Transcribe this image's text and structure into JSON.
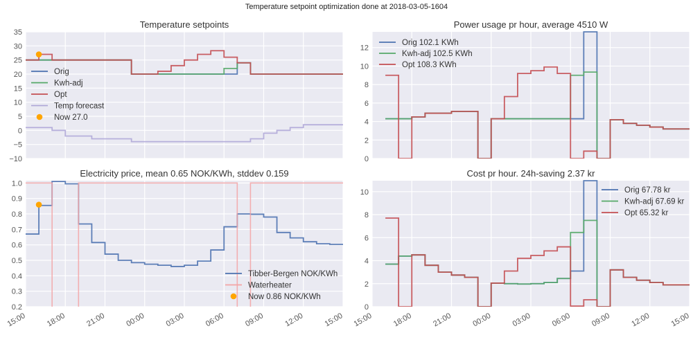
{
  "suptitle": "Temperature setpoint optimization done at 2018-03-05-1604",
  "colors": {
    "orig": "#4c72b0",
    "kwh": "#55a868",
    "opt": "#c44e52",
    "forecast": "#b0a8d8",
    "now": "#ffa500",
    "waterheater": "#f3a3a5",
    "bg": "#eaeaf2",
    "grid": "#ffffff"
  },
  "chart_data": [
    {
      "type": "line",
      "title": "Temperature setpoints",
      "x_tick_labels": [],
      "x_range_hours": [
        0,
        24
      ],
      "ylim": [
        -10,
        35
      ],
      "yticks": [
        -10,
        -5,
        0,
        5,
        10,
        15,
        20,
        25,
        30,
        35
      ],
      "ytick_labels": [
        "−10",
        "−5",
        "0",
        "5",
        "10",
        "15",
        "20",
        "25",
        "30",
        "35"
      ],
      "series": [
        {
          "name": "Orig",
          "color_key": "orig",
          "start_hour": 0,
          "values": [
            25,
            25,
            25,
            25,
            25,
            25,
            25,
            25,
            20,
            20,
            20,
            20,
            20,
            20,
            20,
            20,
            24,
            20,
            20,
            20,
            20,
            20,
            20,
            20
          ]
        },
        {
          "name": "Kwh-adj",
          "color_key": "kwh",
          "start_hour": 0,
          "values": [
            25,
            25,
            25,
            25,
            25,
            25,
            25,
            25,
            20,
            20,
            20,
            20,
            20,
            20,
            20,
            22,
            24,
            20,
            20,
            20,
            20,
            20,
            20,
            20
          ]
        },
        {
          "name": "Opt",
          "color_key": "opt",
          "start_hour": 0,
          "values": [
            25,
            27,
            25,
            25,
            25,
            25,
            25,
            25,
            20,
            20,
            21,
            23,
            25,
            27,
            28.3,
            26,
            24,
            20,
            20,
            20,
            20,
            20,
            20,
            20
          ]
        },
        {
          "name": "Temp forecast",
          "color_key": "forecast",
          "start_hour": 0,
          "values": [
            1,
            1,
            0,
            -2,
            -2,
            -3,
            -3,
            -3,
            -4,
            -4,
            -4,
            -4,
            -4,
            -4,
            -4,
            -4,
            -4,
            -3,
            -1,
            0,
            1,
            2,
            2,
            2
          ]
        }
      ],
      "marker": {
        "name": "Now 27.0",
        "x_hour": 1,
        "y": 27.0
      },
      "legend": "upper-left"
    },
    {
      "type": "line",
      "title": "Power usage pr hour, average 4510 W",
      "x_tick_labels": [],
      "x_range_hours": [
        0,
        24
      ],
      "ylim": [
        0,
        13.7
      ],
      "yticks": [
        0,
        2,
        4,
        6,
        8,
        10,
        12
      ],
      "ytick_labels": [
        "0",
        "2",
        "4",
        "6",
        "8",
        "10",
        "12"
      ],
      "series": [
        {
          "name": "Orig 102.1 KWh",
          "color_key": "orig",
          "start_hour": 1,
          "values": [
            4.3,
            4.3,
            4.5,
            4.9,
            4.9,
            5.1,
            5.1,
            0,
            4.3,
            4.3,
            4.3,
            4.3,
            4.3,
            4.3,
            4.3,
            13.7,
            0,
            4.2,
            3.8,
            3.6,
            3.4,
            3.2,
            3.2
          ]
        },
        {
          "name": "Kwh-adj 102.5 KWh",
          "color_key": "kwh",
          "start_hour": 1,
          "values": [
            4.3,
            4.3,
            4.5,
            4.9,
            4.9,
            5.1,
            5.1,
            0,
            4.3,
            4.3,
            4.3,
            4.3,
            4.3,
            4.3,
            9.0,
            9.35,
            0,
            4.2,
            3.8,
            3.6,
            3.4,
            3.2,
            3.2
          ]
        },
        {
          "name": "Opt 108.3 KWh",
          "color_key": "opt",
          "start_hour": 1,
          "values": [
            9.0,
            0,
            4.5,
            4.9,
            4.9,
            5.1,
            5.1,
            0,
            4.3,
            6.7,
            9.2,
            9.5,
            9.9,
            9.2,
            0,
            0.8,
            0,
            4.2,
            3.8,
            3.6,
            3.4,
            3.2,
            3.2
          ]
        }
      ],
      "legend": "upper-left"
    },
    {
      "type": "line",
      "title": "Electricity price, mean 0.65 NOK/KWh, stddev 0.159",
      "x_tick_labels": [
        "15:00",
        "18:00",
        "21:00",
        "00:00",
        "03:00",
        "06:00",
        "09:00",
        "12:00",
        "15:00"
      ],
      "x_range_hours": [
        0,
        24
      ],
      "ylim": [
        0.2,
        1.015
      ],
      "yticks": [
        0.2,
        0.3,
        0.4,
        0.5,
        0.6,
        0.7,
        0.8,
        0.9,
        1.0
      ],
      "ytick_labels": [
        "0.2",
        "0.3",
        "0.4",
        "0.5",
        "0.6",
        "0.7",
        "0.8",
        "0.9",
        "1.0"
      ],
      "series": [
        {
          "name": "Tibber-Bergen NOK/KWh",
          "color_key": "orig",
          "start_hour": 0,
          "values": [
            0.67,
            0.855,
            1.01,
            0.995,
            0.735,
            0.615,
            0.54,
            0.5,
            0.485,
            0.475,
            0.468,
            0.46,
            0.468,
            0.495,
            0.567,
            0.717,
            0.8,
            0.798,
            0.78,
            0.68,
            0.645,
            0.62,
            0.607,
            0.603
          ]
        },
        {
          "name": "Waterheater",
          "color_key": "waterheater",
          "start_hour": 0,
          "values": [
            1,
            1,
            0,
            0,
            1,
            1,
            1,
            1,
            1,
            1,
            1,
            1,
            1,
            1,
            1,
            1,
            0,
            1,
            1,
            1,
            1,
            1,
            1,
            1
          ]
        }
      ],
      "marker": {
        "name": "Now 0.86 NOK/KWh",
        "x_hour": 1,
        "y": 0.86
      },
      "legend": "lower-right"
    },
    {
      "type": "line",
      "title": "Cost pr hour. 24h-saving 2.37 kr",
      "x_tick_labels": [
        "15:00",
        "18:00",
        "21:00",
        "00:00",
        "03:00",
        "06:00",
        "09:00",
        "12:00",
        "15:00"
      ],
      "x_range_hours": [
        0,
        24
      ],
      "ylim": [
        0,
        10.95
      ],
      "yticks": [
        0,
        2,
        4,
        6,
        8,
        10
      ],
      "ytick_labels": [
        "0",
        "2",
        "4",
        "6",
        "8",
        "10"
      ],
      "series": [
        {
          "name": "Orig 67.78 kr",
          "color_key": "orig",
          "start_hour": 1,
          "values": [
            3.7,
            4.4,
            4.5,
            3.6,
            3.0,
            2.75,
            2.55,
            0,
            2.05,
            2.0,
            1.97,
            2.0,
            2.1,
            2.45,
            3.1,
            10.95,
            0,
            3.2,
            2.55,
            2.3,
            2.1,
            1.9,
            1.9
          ]
        },
        {
          "name": "Kwh-adj 67.69 kr",
          "color_key": "kwh",
          "start_hour": 1,
          "values": [
            3.7,
            4.4,
            4.5,
            3.6,
            3.0,
            2.75,
            2.55,
            0,
            2.05,
            2.0,
            1.97,
            2.0,
            2.1,
            2.45,
            6.45,
            7.5,
            0,
            3.2,
            2.55,
            2.3,
            2.1,
            1.9,
            1.9
          ]
        },
        {
          "name": "Opt 65.32 kr",
          "color_key": "opt",
          "start_hour": 1,
          "values": [
            7.7,
            0,
            4.5,
            3.6,
            3.0,
            2.75,
            2.55,
            0,
            2.05,
            3.1,
            4.2,
            4.45,
            4.85,
            5.2,
            0.05,
            0.6,
            0,
            3.2,
            2.55,
            2.3,
            2.1,
            1.9,
            1.9
          ]
        }
      ],
      "legend": "upper-right"
    }
  ]
}
